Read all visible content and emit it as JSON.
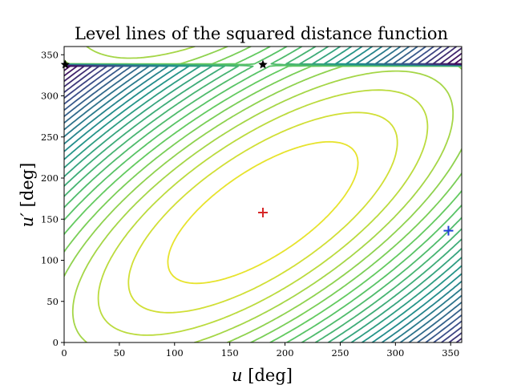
{
  "chart_data": {
    "type": "contour",
    "title": "Level lines of the squared distance function",
    "xlabel_var": "u",
    "xlabel_unit": "[deg]",
    "ylabel_var": "u′",
    "ylabel_unit": "[deg]",
    "xlim": [
      0,
      360
    ],
    "ylim": [
      0,
      360
    ],
    "xticks": [
      "0",
      "50",
      "100",
      "150",
      "200",
      "250",
      "300",
      "350"
    ],
    "yticks": [
      "0",
      "50",
      "100",
      "150",
      "200",
      "250",
      "300",
      "350"
    ],
    "colormap": [
      "#440154",
      "#3b528b",
      "#21918c",
      "#5ec962",
      "#fde725"
    ],
    "function": {
      "type": "squared-distance-level-sets",
      "center_deg": [
        180,
        158
      ],
      "anisotropy_ratio": 0.42,
      "tilt_deg": 45,
      "level_count": 28
    },
    "markers": [
      {
        "name": "max-star-left",
        "type": "star",
        "color": "#000000",
        "x": 1,
        "y": 338
      },
      {
        "name": "max-star-mid",
        "type": "star",
        "color": "#000000",
        "x": 180,
        "y": 338
      },
      {
        "name": "min-plus-red",
        "type": "plus",
        "color": "#d62728",
        "x": 180,
        "y": 158
      },
      {
        "name": "min-plus-blue",
        "type": "plus",
        "color": "#1f3fd6",
        "x": 348,
        "y": 136
      }
    ]
  }
}
